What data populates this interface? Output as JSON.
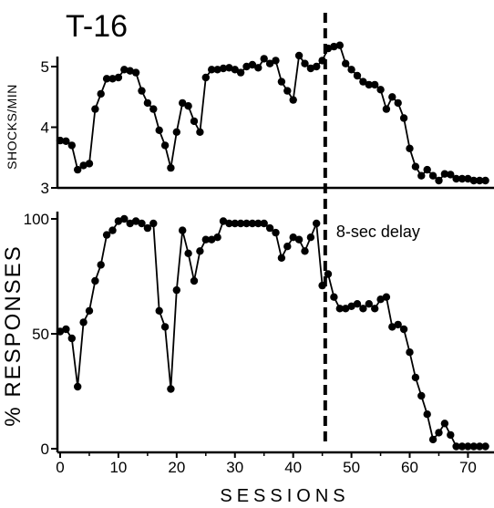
{
  "figure_title": "T-16",
  "xlabel": "SESSIONS",
  "annotation": "8-sec delay",
  "delay_session": 45.5,
  "xlim": [
    0,
    74
  ],
  "x_ticks": [
    0,
    10,
    20,
    30,
    40,
    50,
    60,
    70
  ],
  "chart_data": [
    {
      "type": "line",
      "ylabel": "SHOCKS/MIN",
      "ylim": [
        3,
        5.3
      ],
      "y_ticks": [
        3,
        4,
        5
      ],
      "marker": "filled-circle",
      "series": [
        {
          "x": [
            0,
            1,
            2,
            3,
            4,
            5,
            6,
            7,
            8,
            9,
            10,
            11,
            12,
            13,
            14,
            15,
            16,
            17,
            18,
            19,
            20,
            21,
            22,
            23,
            24,
            25,
            26,
            27,
            28,
            29,
            30,
            31,
            32,
            33,
            34,
            35,
            36,
            37,
            38,
            39,
            40,
            41,
            42,
            43,
            44,
            45,
            46,
            47,
            48,
            49,
            50,
            51,
            52,
            53,
            54,
            55,
            56,
            57,
            58,
            59,
            60,
            61,
            62,
            63,
            64,
            65,
            66,
            67,
            68,
            69,
            70,
            71,
            72,
            73
          ],
          "values": [
            3.78,
            3.77,
            3.7,
            3.3,
            3.37,
            3.4,
            4.3,
            4.55,
            4.8,
            4.8,
            4.82,
            4.95,
            4.93,
            4.9,
            4.6,
            4.4,
            4.3,
            3.95,
            3.7,
            3.33,
            3.92,
            4.4,
            4.35,
            4.1,
            3.92,
            4.82,
            4.95,
            4.95,
            4.97,
            4.98,
            4.95,
            4.9,
            5.0,
            5.03,
            4.98,
            5.13,
            5.05,
            5.1,
            4.75,
            4.6,
            4.45,
            5.18,
            5.05,
            4.97,
            5.0,
            5.1,
            5.3,
            5.33,
            5.35,
            5.05,
            4.95,
            4.85,
            4.75,
            4.7,
            4.7,
            4.62,
            4.3,
            4.5,
            4.4,
            4.15,
            3.65,
            3.35,
            3.2,
            3.3,
            3.2,
            3.12,
            3.23,
            3.22,
            3.15,
            3.15,
            3.15,
            3.12,
            3.12,
            3.12
          ]
        }
      ]
    },
    {
      "type": "line",
      "ylabel": "% RESPONSES",
      "ylim": [
        0,
        100
      ],
      "y_ticks": [
        0,
        50,
        100
      ],
      "marker": "filled-circle",
      "series": [
        {
          "x": [
            0,
            1,
            2,
            3,
            4,
            5,
            6,
            7,
            8,
            9,
            10,
            11,
            12,
            13,
            14,
            15,
            16,
            17,
            18,
            19,
            20,
            21,
            22,
            23,
            24,
            25,
            26,
            27,
            28,
            29,
            30,
            31,
            32,
            33,
            34,
            35,
            36,
            37,
            38,
            39,
            40,
            41,
            42,
            43,
            44,
            45,
            46,
            47,
            48,
            49,
            50,
            51,
            52,
            53,
            54,
            55,
            56,
            57,
            58,
            59,
            60,
            61,
            62,
            63,
            64,
            65,
            66,
            67,
            68,
            69,
            70,
            71,
            72,
            73
          ],
          "values": [
            51,
            52,
            48,
            27,
            55,
            60,
            73,
            80,
            93,
            95,
            99,
            100,
            98,
            99,
            98,
            96,
            98,
            60,
            53,
            26,
            69,
            95,
            85,
            73,
            86,
            91,
            91,
            92,
            99,
            98,
            98,
            98,
            98,
            98,
            98,
            98,
            96,
            94,
            83,
            88,
            92,
            91,
            86,
            92,
            98,
            71,
            76,
            66,
            61,
            61,
            62,
            63,
            61,
            63,
            61,
            65,
            66,
            53,
            54,
            52,
            42,
            31,
            23,
            15,
            4,
            7,
            11,
            6,
            1,
            1,
            1,
            1,
            1,
            1
          ]
        }
      ]
    }
  ]
}
